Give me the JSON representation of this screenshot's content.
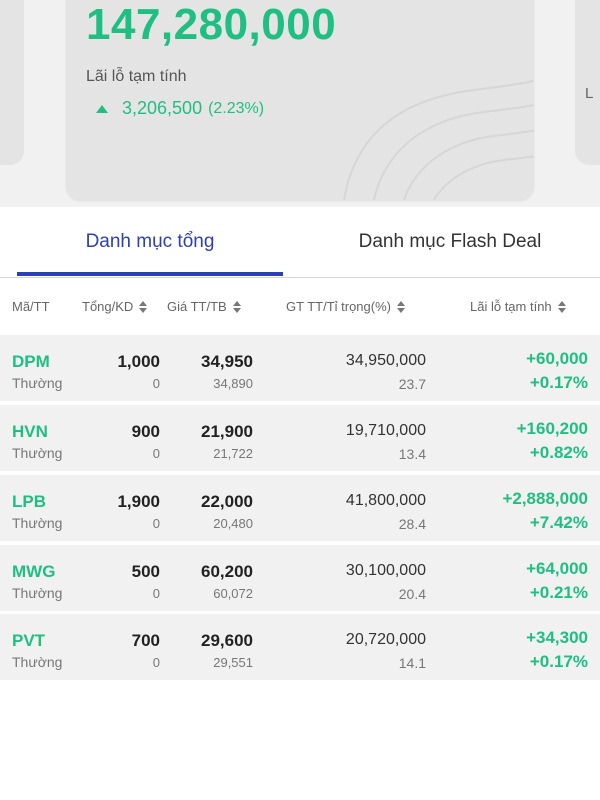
{
  "summary": {
    "nav_value": "147,280,000",
    "pl_label": "Lãi lỗ tạm tính",
    "pl_value": "3,206,500",
    "pl_percent": "(2.23%)",
    "right_card_peek": "L",
    "pl_trend_icon": "triangle-up-icon"
  },
  "colors": {
    "positive": "#1fbf84",
    "accent": "#2b3fb8",
    "row_bg": "#f1f1f1"
  },
  "tabs": [
    {
      "label": "Danh mục tổng",
      "active": true
    },
    {
      "label": "Danh mục Flash Deal",
      "active": false
    }
  ],
  "table": {
    "headers": {
      "symbol": "Mã/TT",
      "qty": "Tổng/KD",
      "price": "Giá TT/TB",
      "value": "GT TT/Tỉ trọng(%)",
      "pl": "Lãi lỗ tạm tính"
    },
    "rows": [
      {
        "symbol": "DPM",
        "type": "Thường",
        "qty_total": "1,000",
        "qty_available": "0",
        "price_market": "34,950",
        "price_avg": "34,890",
        "market_value": "34,950,000",
        "weight": "23.7",
        "pl_value": "+60,000",
        "pl_percent": "+0.17%"
      },
      {
        "symbol": "HVN",
        "type": "Thường",
        "qty_total": "900",
        "qty_available": "0",
        "price_market": "21,900",
        "price_avg": "21,722",
        "market_value": "19,710,000",
        "weight": "13.4",
        "pl_value": "+160,200",
        "pl_percent": "+0.82%"
      },
      {
        "symbol": "LPB",
        "type": "Thường",
        "qty_total": "1,900",
        "qty_available": "0",
        "price_market": "22,000",
        "price_avg": "20,480",
        "market_value": "41,800,000",
        "weight": "28.4",
        "pl_value": "+2,888,000",
        "pl_percent": "+7.42%"
      },
      {
        "symbol": "MWG",
        "type": "Thường",
        "qty_total": "500",
        "qty_available": "0",
        "price_market": "60,200",
        "price_avg": "60,072",
        "market_value": "30,100,000",
        "weight": "20.4",
        "pl_value": "+64,000",
        "pl_percent": "+0.21%"
      },
      {
        "symbol": "PVT",
        "type": "Thường",
        "qty_total": "700",
        "qty_available": "0",
        "price_market": "29,600",
        "price_avg": "29,551",
        "market_value": "20,720,000",
        "weight": "14.1",
        "pl_value": "+34,300",
        "pl_percent": "+0.17%"
      }
    ]
  }
}
